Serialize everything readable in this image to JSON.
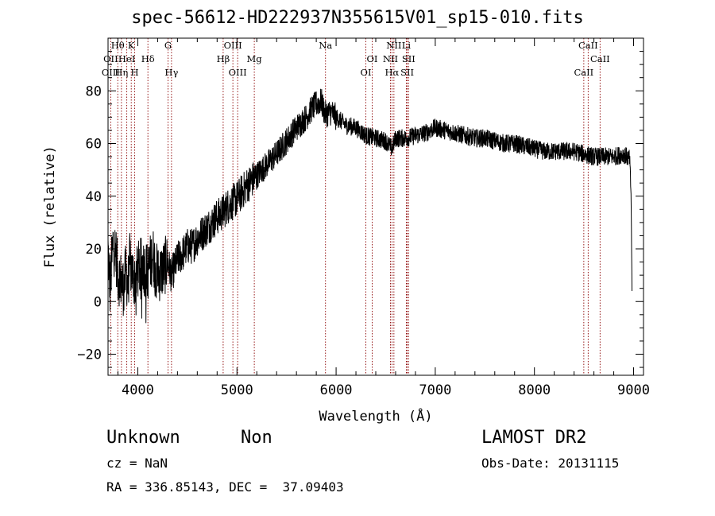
{
  "chart_data": {
    "type": "line",
    "title": "spec-56612-HD222937N355615V01_sp15-010.fits",
    "xlabel": "Wavelength (Å)",
    "ylabel": "Flux (relative)",
    "xlim": [
      3700,
      9100
    ],
    "ylim": [
      -28,
      100
    ],
    "xticks": [
      4000,
      5000,
      6000,
      7000,
      8000,
      9000
    ],
    "yticks": [
      -20,
      0,
      20,
      40,
      60,
      80
    ],
    "grid": false,
    "spectrum_anchors": {
      "x": [
        3700,
        3720,
        3750,
        3780,
        3800,
        3830,
        3860,
        3880,
        3900,
        3920,
        3950,
        3980,
        4000,
        4050,
        4100,
        4150,
        4200,
        4250,
        4300,
        4340,
        4400,
        4450,
        4500,
        4550,
        4600,
        4700,
        4800,
        4860,
        4900,
        5000,
        5100,
        5200,
        5300,
        5400,
        5500,
        5600,
        5700,
        5750,
        5800,
        5850,
        5890,
        5950,
        6000,
        6100,
        6200,
        6300,
        6400,
        6500,
        6563,
        6600,
        6700,
        6800,
        6900,
        7000,
        7100,
        7200,
        7300,
        7400,
        7500,
        7600,
        7700,
        7800,
        7900,
        8000,
        8100,
        8200,
        8300,
        8400,
        8500,
        8600,
        8700,
        8800,
        8900,
        8960,
        8975,
        8985
      ],
      "y": [
        20,
        5,
        22,
        18,
        10,
        8,
        5,
        12,
        6,
        15,
        10,
        8,
        12,
        14,
        11,
        18,
        10,
        12,
        15,
        10,
        16,
        18,
        21,
        21,
        24,
        28,
        32,
        34,
        36,
        39,
        44,
        48,
        52,
        56,
        61,
        66,
        70,
        73,
        75,
        76,
        71,
        72,
        70,
        67,
        66,
        63,
        62,
        61,
        58,
        62,
        62,
        63,
        64,
        66,
        65,
        64,
        63,
        62,
        62,
        61,
        60,
        60,
        59,
        58,
        57,
        57,
        57,
        57,
        56,
        55,
        55,
        55,
        56,
        54,
        40,
        0
      ],
      "noise_amplitude": 3.5
    },
    "spectral_lines": [
      {
        "label": "Hθ",
        "x": 3798,
        "row": 1
      },
      {
        "label": "K",
        "x": 3934,
        "row": 1
      },
      {
        "label": "G",
        "x": 4305,
        "row": 1
      },
      {
        "label": "OIII",
        "x": 4959,
        "row": 1
      },
      {
        "label": "Na",
        "x": 5893,
        "row": 1
      },
      {
        "label": "NII",
        "x": 6583,
        "row": 1
      },
      {
        "label": "Li",
        "x": 6708,
        "row": 1
      },
      {
        "label": "CaII",
        "x": 8542,
        "row": 1
      },
      {
        "label": "OII",
        "x": 3727,
        "row": 2
      },
      {
        "label": "HeI",
        "x": 3889,
        "row": 2
      },
      {
        "label": "Hδ",
        "x": 4102,
        "row": 2
      },
      {
        "label": "Hβ",
        "x": 4861,
        "row": 2
      },
      {
        "label": "Mg",
        "x": 5175,
        "row": 2
      },
      {
        "label": "OI",
        "x": 6364,
        "row": 2
      },
      {
        "label": "NII",
        "x": 6548,
        "row": 2
      },
      {
        "label": "SII",
        "x": 6731,
        "row": 2
      },
      {
        "label": "CaII",
        "x": 8662,
        "row": 2
      },
      {
        "label": "OIII",
        "x": 3727,
        "row": 3
      },
      {
        "label": "Hη",
        "x": 3835,
        "row": 3
      },
      {
        "label": "H",
        "x": 3969,
        "row": 3
      },
      {
        "label": "Hγ",
        "x": 4340,
        "row": 3
      },
      {
        "label": "OIII",
        "x": 5007,
        "row": 3
      },
      {
        "label": "OI",
        "x": 6300,
        "row": 3
      },
      {
        "label": "Hα",
        "x": 6563,
        "row": 3
      },
      {
        "label": "SII",
        "x": 6717,
        "row": 3
      },
      {
        "label": "CaII",
        "x": 8498,
        "row": 3
      }
    ],
    "line_colors": {
      "spectrum": "#000000",
      "markers": "#8b0000"
    }
  },
  "info": {
    "object_class": "Unknown",
    "subclass": "Non",
    "survey": "LAMOST DR2",
    "cz": "cz = NaN",
    "obs_date": "Obs-Date: 20131115",
    "coords": "RA = 336.85143, DEC =  37.09403"
  }
}
